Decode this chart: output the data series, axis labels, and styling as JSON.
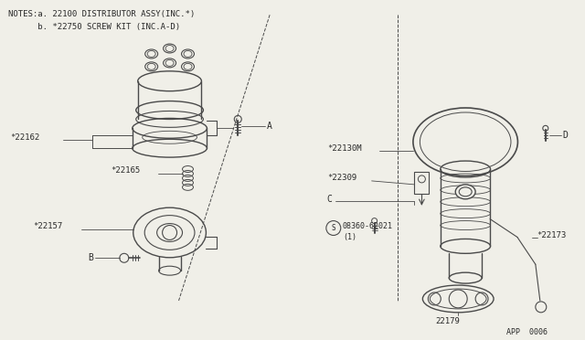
{
  "bg_color": "#f0efe8",
  "line_color": "#4a4a4a",
  "text_color": "#2a2a2a",
  "title_line1": "NOTES:a. 22100 DISTRIBUTOR ASSY(INC.*)",
  "title_line2": "      b. *22750 SCREW KIT (INC.A-D)",
  "footer_text": "APP  0006"
}
